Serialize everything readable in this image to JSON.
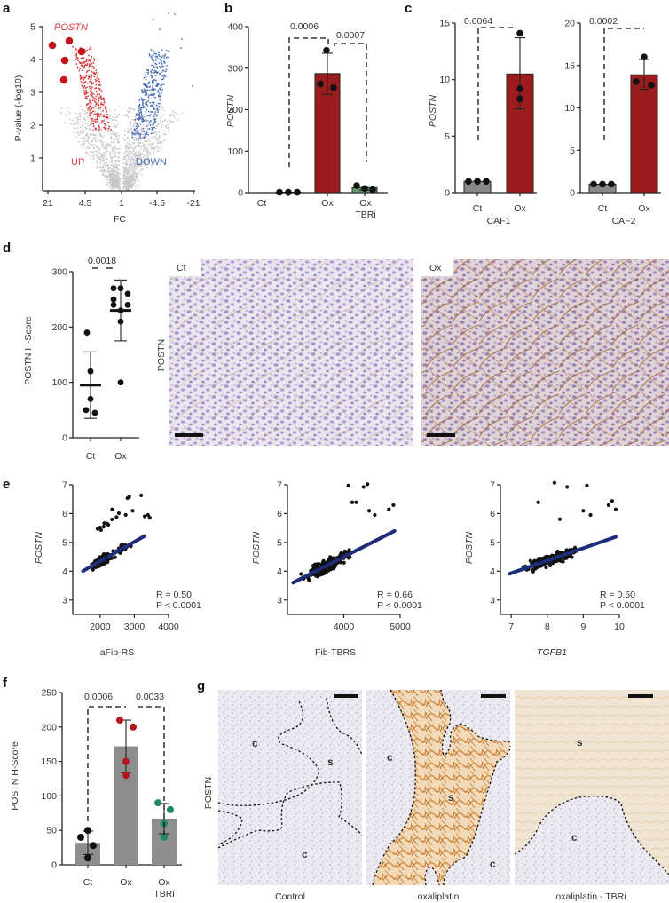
{
  "panels": {
    "a": {
      "label": "a",
      "gene_label": "POSTN",
      "up_label": "UP",
      "down_label": "DOWN",
      "ylabel": "P-value (-log10)",
      "xlabel": "FC"
    },
    "b": {
      "label": "b",
      "ylabel": "POSTN",
      "categories": [
        "Ct",
        "Ox",
        "Ox TBRi"
      ],
      "pvalues": [
        "0.0006",
        "0.0007"
      ]
    },
    "c": {
      "label": "c",
      "ylabel": "POSTN",
      "sub": [
        {
          "xlabel": "CAF1",
          "categories": [
            "Ct",
            "Ox"
          ],
          "pvalue": "0.0064"
        },
        {
          "xlabel": "CAF2",
          "categories": [
            "Ct",
            "Ox"
          ],
          "pvalue": "0.0002"
        }
      ]
    },
    "d": {
      "label": "d",
      "ylabel": "POSTN H-Score",
      "categories": [
        "Ct",
        "Ox"
      ],
      "pvalue": "0.0018",
      "image_row_label": "POSTN",
      "image_labels": [
        "Ct",
        "Ox"
      ]
    },
    "e": {
      "label": "e",
      "ylabel": "POSTN",
      "sub": [
        {
          "xlabel": "aFib-RS",
          "r": "R = 0.50",
          "p": "P < 0.0001"
        },
        {
          "xlabel": "Fib-TBRS",
          "r": "R = 0.66",
          "p": "P < 0.0001"
        },
        {
          "xlabel": "TGFB1",
          "r": "R = 0.50",
          "p": "P < 0.0001"
        }
      ]
    },
    "f": {
      "label": "f",
      "ylabel": "POSTN H-Score",
      "categories": [
        "Ct",
        "Ox",
        "Ox TBRi"
      ],
      "pvalues": [
        "0.0006",
        "0.0033"
      ]
    },
    "g": {
      "label": "g",
      "row_label": "POSTN",
      "captions": [
        "Control",
        "oxaliplatin",
        "oxaliplatin - TBRi"
      ],
      "region_labels": [
        [
          "c",
          "s",
          "c"
        ],
        [
          "c",
          "s",
          "c"
        ],
        [
          "s",
          "c"
        ]
      ]
    }
  },
  "colors": {
    "up": "#d93a3a",
    "down": "#4a6fb5",
    "bar_ox": "#9b1c1f",
    "bar_ct": "#8a8a8a",
    "bar_tbri": "#6b9a6e",
    "fit_line": "#1d2d7a",
    "f_bar": "#8e8e8e",
    "f_ox_dot": "#b4161b",
    "f_tbri_dot": "#1f8a63"
  },
  "chart_data": [
    {
      "panel": "a",
      "type": "scatter",
      "title": "Volcano plot",
      "xlabel": "FC",
      "ylabel": "P-value (-log10)",
      "x_ticks": [
        "21",
        "4.5",
        "1",
        "-4.5",
        "-21"
      ],
      "y_ticks": [
        1,
        2,
        3,
        4,
        5
      ],
      "ylim": [
        0,
        5
      ],
      "annotations": [
        "POSTN",
        "UP",
        "DOWN"
      ],
      "highlight_points_postn": [
        {
          "y": 4.45
        },
        {
          "y": 4.55
        },
        {
          "y": 4.25
        },
        {
          "y": 4.0
        },
        {
          "y": 3.4
        }
      ]
    },
    {
      "panel": "b",
      "type": "bar",
      "categories": [
        "Ct",
        "Ox",
        "Ox TBRi"
      ],
      "values": [
        1,
        287,
        12
      ],
      "error_low": [
        1,
        237,
        6
      ],
      "error_high": [
        1,
        336,
        16
      ],
      "points": [
        [
          1,
          1,
          1
        ],
        [
          343,
          262,
          253
        ],
        [
          17,
          10,
          7
        ]
      ],
      "ylabel": "POSTN",
      "ylim": [
        0,
        400
      ],
      "y_ticks": [
        0,
        100,
        200,
        300,
        400
      ],
      "comparisons": [
        {
          "pair": [
            "Ct",
            "Ox"
          ],
          "p": "0.0006"
        },
        {
          "pair": [
            "Ox",
            "Ox TBRi"
          ],
          "p": "0.0007"
        }
      ]
    },
    {
      "panel": "c-CAF1",
      "type": "bar",
      "categories": [
        "Ct",
        "Ox"
      ],
      "values": [
        1,
        10.5
      ],
      "error_low": [
        1,
        7.4
      ],
      "error_high": [
        1,
        13.7
      ],
      "points": [
        [
          1,
          1,
          1
        ],
        [
          14.1,
          9.2,
          8.3
        ]
      ],
      "ylabel": "POSTN",
      "xlabel": "CAF1",
      "ylim": [
        0,
        15
      ],
      "y_ticks": [
        0,
        5,
        10,
        15
      ],
      "comparisons": [
        {
          "pair": [
            "Ct",
            "Ox"
          ],
          "p": "0.0064"
        }
      ]
    },
    {
      "panel": "c-CAF2",
      "type": "bar",
      "categories": [
        "Ct",
        "Ox"
      ],
      "values": [
        1,
        13.9
      ],
      "error_low": [
        1,
        12.2
      ],
      "error_high": [
        1,
        15.7
      ],
      "points": [
        [
          1,
          1,
          1
        ],
        [
          16,
          13.1,
          12.7
        ]
      ],
      "xlabel": "CAF2",
      "ylim": [
        0,
        20
      ],
      "y_ticks": [
        0,
        5,
        10,
        15,
        20
      ],
      "comparisons": [
        {
          "pair": [
            "Ct",
            "Ox"
          ],
          "p": "0.0002"
        }
      ]
    },
    {
      "panel": "d",
      "type": "scatter",
      "categories": [
        "Ct",
        "Ox"
      ],
      "means": [
        95,
        230
      ],
      "error_low": [
        35,
        175
      ],
      "error_high": [
        155,
        285
      ],
      "points": [
        [
          190,
          120,
          70,
          50,
          45
        ],
        [
          270,
          270,
          260,
          250,
          240,
          240,
          230,
          210,
          100
        ]
      ],
      "ylabel": "POSTN H-Score",
      "ylim": [
        0,
        300
      ],
      "y_ticks": [
        0,
        100,
        200,
        300
      ],
      "comparisons": [
        {
          "pair": [
            "Ct",
            "Ox"
          ],
          "p": "0.0018"
        }
      ]
    },
    {
      "panel": "e-1",
      "type": "scatter",
      "xlabel": "aFib-RS",
      "ylabel": "POSTN",
      "xlim": [
        1200,
        4000
      ],
      "ylim": [
        2.5,
        7
      ],
      "x_ticks": [
        2000,
        3000,
        4000
      ],
      "y_ticks": [
        3,
        4,
        5,
        6,
        7
      ],
      "fit": {
        "x": [
          1500,
          3300
        ],
        "y": [
          4.05,
          5.3
        ]
      },
      "R": 0.5,
      "P": "< 0.0001"
    },
    {
      "panel": "e-2",
      "type": "scatter",
      "xlabel": "Fib-TBRS",
      "ylabel": "POSTN",
      "xlim": [
        3000,
        5000
      ],
      "ylim": [
        2.5,
        7
      ],
      "x_ticks": [
        4000,
        5000
      ],
      "y_ticks": [
        3,
        4,
        5,
        6,
        7
      ],
      "fit": {
        "x": [
          3100,
          4900
        ],
        "y": [
          3.63,
          5.48
        ]
      },
      "R": 0.66,
      "P": "< 0.0001"
    },
    {
      "panel": "e-3",
      "type": "scatter",
      "xlabel": "TGFB1",
      "ylabel": "POSTN",
      "xlim": [
        6.7,
        10
      ],
      "ylim": [
        2.5,
        7
      ],
      "x_ticks": [
        7,
        8,
        9,
        10
      ],
      "y_ticks": [
        3,
        4,
        5,
        6,
        7
      ],
      "fit": {
        "x": [
          6.95,
          9.9
        ],
        "y": [
          3.95,
          5.27
        ]
      },
      "R": 0.5,
      "P": "< 0.0001"
    },
    {
      "panel": "f",
      "type": "bar",
      "categories": [
        "Ct",
        "Ox",
        "Ox TBRi"
      ],
      "values": [
        32,
        172,
        67
      ],
      "error_low": [
        15,
        134,
        45
      ],
      "error_high": [
        49,
        210,
        89
      ],
      "points": [
        [
          50,
          40,
          28,
          10
        ],
        [
          210,
          200,
          150,
          130
        ],
        [
          90,
          80,
          60,
          40
        ]
      ],
      "ylabel": "POSTN H-Score",
      "ylim": [
        0,
        250
      ],
      "y_ticks": [
        0,
        50,
        100,
        150,
        200,
        250
      ],
      "comparisons": [
        {
          "pair": [
            "Ct",
            "Ox"
          ],
          "p": "0.0006"
        },
        {
          "pair": [
            "Ox",
            "Ox TBRi"
          ],
          "p": "0.0033"
        }
      ]
    }
  ]
}
